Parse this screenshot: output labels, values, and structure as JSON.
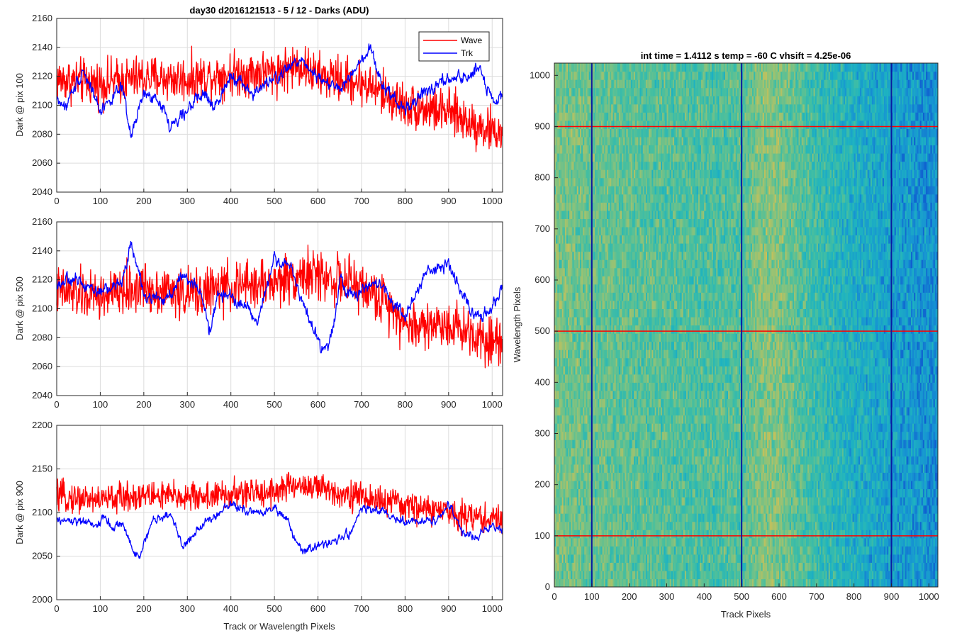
{
  "colors": {
    "wave": "#ff0000",
    "trk": "#0000ff",
    "grid": "#dcdcdc",
    "axis": "#262626",
    "colormap": [
      "#0f5fd0",
      "#1795d2",
      "#1eb3c0",
      "#46bfa0",
      "#8cc27a",
      "#c6c15a",
      "#ebbb4a"
    ]
  },
  "chart_data": [
    {
      "type": "line",
      "title": "day30 d2016121513 - 5 / 12 - Darks (ADU)",
      "xlabel": "",
      "ylabel": "Dark @ pix 100",
      "xlim": [
        0,
        1024
      ],
      "ylim": [
        2040,
        2160
      ],
      "xticks": [
        "0",
        "100",
        "200",
        "300",
        "400",
        "500",
        "600",
        "700",
        "800",
        "900",
        "1000"
      ],
      "yticks": [
        "2040",
        "2060",
        "2080",
        "2100",
        "2120",
        "2140",
        "2160"
      ],
      "grid": true,
      "legend": {
        "position": "top-right",
        "entries": [
          "Wave",
          "Trk"
        ]
      },
      "series": [
        {
          "name": "Wave",
          "color": "red",
          "anchors": [
            [
              0,
              2118
            ],
            [
              100,
              2115
            ],
            [
              200,
              2119
            ],
            [
              300,
              2118
            ],
            [
              400,
              2122
            ],
            [
              500,
              2123
            ],
            [
              560,
              2128
            ],
            [
              600,
              2120
            ],
            [
              700,
              2116
            ],
            [
              800,
              2100
            ],
            [
              900,
              2095
            ],
            [
              1000,
              2082
            ],
            [
              1024,
              2080
            ]
          ],
          "noise": 11
        },
        {
          "name": "Trk",
          "color": "blue",
          "anchors": [
            [
              0,
              2105
            ],
            [
              20,
              2098
            ],
            [
              60,
              2125
            ],
            [
              100,
              2097
            ],
            [
              150,
              2112
            ],
            [
              170,
              2078
            ],
            [
              200,
              2108
            ],
            [
              245,
              2100
            ],
            [
              260,
              2084
            ],
            [
              300,
              2098
            ],
            [
              340,
              2108
            ],
            [
              360,
              2097
            ],
            [
              400,
              2122
            ],
            [
              450,
              2108
            ],
            [
              500,
              2118
            ],
            [
              560,
              2132
            ],
            [
              600,
              2120
            ],
            [
              650,
              2110
            ],
            [
              700,
              2130
            ],
            [
              720,
              2138
            ],
            [
              750,
              2112
            ],
            [
              800,
              2097
            ],
            [
              850,
              2110
            ],
            [
              900,
              2118
            ],
            [
              950,
              2120
            ],
            [
              970,
              2128
            ],
            [
              1000,
              2103
            ],
            [
              1024,
              2104
            ]
          ],
          "noise": 5
        }
      ]
    },
    {
      "type": "line",
      "title": "",
      "xlabel": "",
      "ylabel": "Dark @ pix 500",
      "xlim": [
        0,
        1024
      ],
      "ylim": [
        2040,
        2160
      ],
      "xticks": [
        "0",
        "100",
        "200",
        "300",
        "400",
        "500",
        "600",
        "700",
        "800",
        "900",
        "1000"
      ],
      "yticks": [
        "2040",
        "2060",
        "2080",
        "2100",
        "2120",
        "2140",
        "2160"
      ],
      "grid": true,
      "series": [
        {
          "name": "Wave",
          "color": "red",
          "anchors": [
            [
              0,
              2112
            ],
            [
              100,
              2108
            ],
            [
              200,
              2115
            ],
            [
              300,
              2110
            ],
            [
              400,
              2115
            ],
            [
              500,
              2118
            ],
            [
              560,
              2124
            ],
            [
              620,
              2122
            ],
            [
              700,
              2115
            ],
            [
              780,
              2100
            ],
            [
              800,
              2088
            ],
            [
              900,
              2090
            ],
            [
              1000,
              2078
            ],
            [
              1024,
              2080
            ]
          ],
          "noise": 12
        },
        {
          "name": "Trk",
          "color": "blue",
          "anchors": [
            [
              0,
              2118
            ],
            [
              50,
              2120
            ],
            [
              100,
              2112
            ],
            [
              150,
              2118
            ],
            [
              170,
              2145
            ],
            [
              200,
              2110
            ],
            [
              250,
              2105
            ],
            [
              290,
              2125
            ],
            [
              330,
              2112
            ],
            [
              350,
              2083
            ],
            [
              370,
              2110
            ],
            [
              400,
              2108
            ],
            [
              440,
              2100
            ],
            [
              460,
              2090
            ],
            [
              500,
              2135
            ],
            [
              540,
              2128
            ],
            [
              570,
              2100
            ],
            [
              590,
              2085
            ],
            [
              610,
              2070
            ],
            [
              630,
              2080
            ],
            [
              650,
              2120
            ],
            [
              680,
              2108
            ],
            [
              700,
              2112
            ],
            [
              740,
              2120
            ],
            [
              770,
              2105
            ],
            [
              800,
              2095
            ],
            [
              850,
              2125
            ],
            [
              900,
              2130
            ],
            [
              950,
              2100
            ],
            [
              980,
              2095
            ],
            [
              1024,
              2112
            ]
          ],
          "noise": 5
        }
      ]
    },
    {
      "type": "line",
      "title": "",
      "xlabel": "Track or Wavelength Pixels",
      "ylabel": "Dark @ pix 900",
      "xlim": [
        0,
        1024
      ],
      "ylim": [
        2000,
        2200
      ],
      "xticks": [
        "0",
        "100",
        "200",
        "300",
        "400",
        "500",
        "600",
        "700",
        "800",
        "900",
        "1000"
      ],
      "yticks": [
        "2000",
        "2050",
        "2100",
        "2150",
        "2200"
      ],
      "grid": true,
      "series": [
        {
          "name": "Wave",
          "color": "red",
          "anchors": [
            [
              0,
              2118
            ],
            [
              100,
              2115
            ],
            [
              200,
              2120
            ],
            [
              300,
              2118
            ],
            [
              400,
              2120
            ],
            [
              500,
              2125
            ],
            [
              560,
              2132
            ],
            [
              600,
              2128
            ],
            [
              700,
              2118
            ],
            [
              800,
              2108
            ],
            [
              900,
              2100
            ],
            [
              1000,
              2092
            ],
            [
              1024,
              2092
            ]
          ],
          "noise": 12
        },
        {
          "name": "Trk",
          "color": "blue",
          "anchors": [
            [
              0,
              2090
            ],
            [
              50,
              2090
            ],
            [
              90,
              2085
            ],
            [
              110,
              2095
            ],
            [
              130,
              2080
            ],
            [
              150,
              2090
            ],
            [
              175,
              2055
            ],
            [
              190,
              2050
            ],
            [
              220,
              2090
            ],
            [
              260,
              2100
            ],
            [
              290,
              2060
            ],
            [
              320,
              2080
            ],
            [
              360,
              2095
            ],
            [
              400,
              2110
            ],
            [
              450,
              2100
            ],
            [
              500,
              2105
            ],
            [
              530,
              2090
            ],
            [
              560,
              2055
            ],
            [
              600,
              2062
            ],
            [
              640,
              2066
            ],
            [
              680,
              2080
            ],
            [
              700,
              2105
            ],
            [
              750,
              2100
            ],
            [
              800,
              2088
            ],
            [
              850,
              2090
            ],
            [
              880,
              2092
            ],
            [
              900,
              2110
            ],
            [
              930,
              2078
            ],
            [
              960,
              2072
            ],
            [
              1000,
              2085
            ],
            [
              1024,
              2080
            ]
          ],
          "noise": 6
        }
      ]
    },
    {
      "type": "heatmap",
      "title": "int time = 1.4112 s    temp = -60 C    vhsift = 4.25e-06",
      "xlabel": "Track Pixels",
      "ylabel": "Wavelength Pixels",
      "xlim": [
        0,
        1024
      ],
      "ylim": [
        0,
        1024
      ],
      "xticks": [
        "0",
        "100",
        "200",
        "300",
        "400",
        "500",
        "600",
        "700",
        "800",
        "900",
        "1000"
      ],
      "yticks": [
        "0",
        "100",
        "200",
        "300",
        "400",
        "500",
        "600",
        "700",
        "800",
        "900",
        "1000"
      ],
      "column_level_profile": [
        [
          0,
          0.62
        ],
        [
          100,
          0.58
        ],
        [
          200,
          0.55
        ],
        [
          300,
          0.52
        ],
        [
          400,
          0.5
        ],
        [
          500,
          0.52
        ],
        [
          560,
          0.66
        ],
        [
          600,
          0.64
        ],
        [
          660,
          0.52
        ],
        [
          720,
          0.42
        ],
        [
          800,
          0.32
        ],
        [
          900,
          0.24
        ],
        [
          1000,
          0.16
        ],
        [
          1024,
          0.15
        ]
      ],
      "horizontal_markers": [
        100,
        500,
        900
      ],
      "vertical_markers": [
        100,
        500,
        900
      ],
      "horizontal_marker_color": "red",
      "vertical_marker_color": "blue"
    }
  ]
}
